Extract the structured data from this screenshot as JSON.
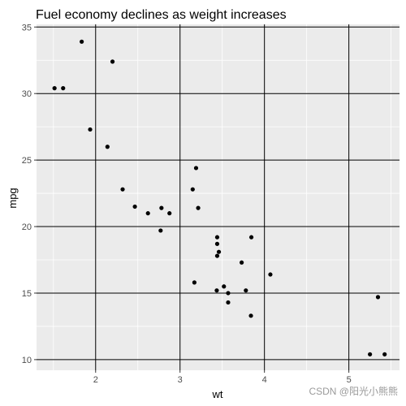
{
  "chart_data": {
    "type": "scatter",
    "title": "Fuel economy declines as weight increases",
    "xlabel": "wt",
    "ylabel": "mpg",
    "xlim": [
      1.3,
      5.6
    ],
    "ylim": [
      9.2,
      35.2
    ],
    "x_ticks": [
      2,
      3,
      4,
      5
    ],
    "y_ticks": [
      10,
      15,
      20,
      25,
      30,
      35
    ],
    "x_minor": [
      1.5,
      2.5,
      3.5,
      4.5,
      5.5
    ],
    "y_minor": [
      12.5,
      17.5,
      22.5,
      27.5,
      32.5
    ],
    "grid": true,
    "panel_color": "#ebebeb",
    "major_grid_color": "#000000",
    "minor_grid_color": "#ffffff",
    "point_color": "#000000",
    "points": [
      {
        "x": 1.513,
        "y": 30.4
      },
      {
        "x": 1.615,
        "y": 30.4
      },
      {
        "x": 1.835,
        "y": 33.9
      },
      {
        "x": 1.935,
        "y": 27.3
      },
      {
        "x": 2.14,
        "y": 26.0
      },
      {
        "x": 2.2,
        "y": 32.4
      },
      {
        "x": 2.32,
        "y": 22.8
      },
      {
        "x": 2.465,
        "y": 21.5
      },
      {
        "x": 2.62,
        "y": 21.0
      },
      {
        "x": 2.77,
        "y": 19.7
      },
      {
        "x": 2.78,
        "y": 21.4
      },
      {
        "x": 2.875,
        "y": 21.0
      },
      {
        "x": 3.15,
        "y": 22.8
      },
      {
        "x": 3.17,
        "y": 15.8
      },
      {
        "x": 3.19,
        "y": 24.4
      },
      {
        "x": 3.215,
        "y": 21.4
      },
      {
        "x": 3.435,
        "y": 15.2
      },
      {
        "x": 3.44,
        "y": 18.7
      },
      {
        "x": 3.44,
        "y": 19.2
      },
      {
        "x": 3.44,
        "y": 17.8
      },
      {
        "x": 3.46,
        "y": 18.1
      },
      {
        "x": 3.52,
        "y": 15.5
      },
      {
        "x": 3.57,
        "y": 14.3
      },
      {
        "x": 3.57,
        "y": 15.0
      },
      {
        "x": 3.73,
        "y": 17.3
      },
      {
        "x": 3.78,
        "y": 15.2
      },
      {
        "x": 3.84,
        "y": 13.3
      },
      {
        "x": 3.845,
        "y": 19.2
      },
      {
        "x": 4.07,
        "y": 16.4
      },
      {
        "x": 5.25,
        "y": 10.4
      },
      {
        "x": 5.345,
        "y": 14.7
      },
      {
        "x": 5.424,
        "y": 10.4
      }
    ]
  },
  "watermark": "CSDN @阳光小熊熊"
}
